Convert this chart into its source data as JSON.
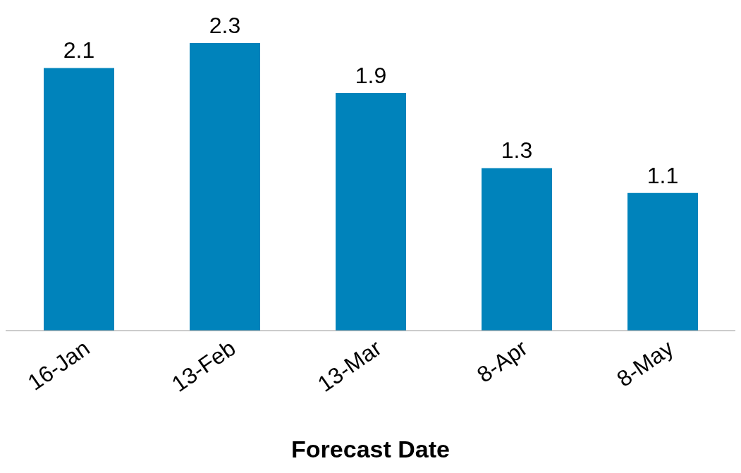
{
  "chart_data": {
    "type": "bar",
    "xlabel": "Forecast Date",
    "categories": [
      "16-Jan",
      "13-Feb",
      "13-Mar",
      "8-Apr",
      "8-May"
    ],
    "values": [
      2.1,
      2.3,
      1.9,
      1.3,
      1.1
    ],
    "color": "#0083bb",
    "data_labels": true
  }
}
